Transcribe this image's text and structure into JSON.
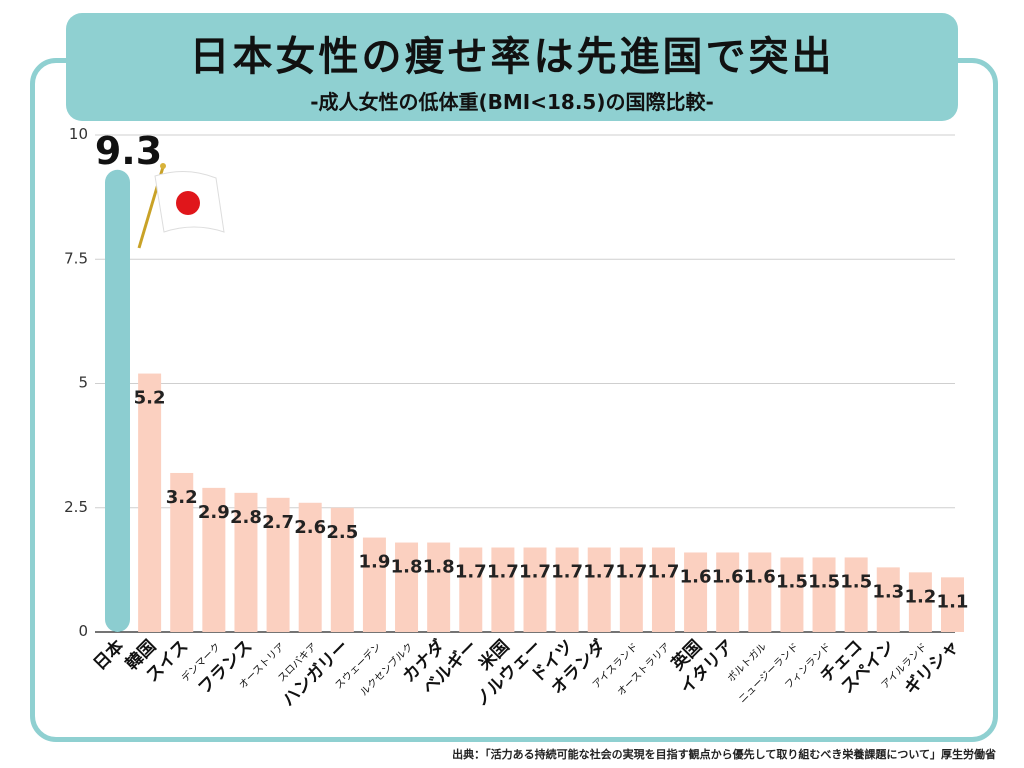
{
  "header": {
    "title": "日本女性の痩せ率は先進国で突出",
    "subtitle": "-成人女性の低体重(BMI<18.5)の国際比較-"
  },
  "source": "出典：「活力ある持続可能な社会の実現を目指す観点から優先して取り組むべき栄養課題について」厚生労働省",
  "colors": {
    "accent": "#8fd0d1",
    "bar_other": "#fbd0c0",
    "bar_japan": "#8ccdd0",
    "flag_red": "#e0161b"
  },
  "chart_data": {
    "type": "bar",
    "categories": [
      "日本",
      "韓国",
      "スイス",
      "デンマーク",
      "フランス",
      "オーストリア",
      "スロバキア",
      "ハンガリー",
      "スウェーデン",
      "ルクセンブルク",
      "カナダ",
      "ベルギー",
      "米国",
      "ノルウェー",
      "ドイツ",
      "オランダ",
      "アイスランド",
      "オーストラリア",
      "英国",
      "イタリア",
      "ポルトガル",
      "ニュージーランド",
      "フィンランド",
      "チェコ",
      "スペイン",
      "アイルランド",
      "ギリシャ"
    ],
    "values": [
      9.3,
      5.2,
      3.2,
      2.9,
      2.8,
      2.7,
      2.6,
      2.5,
      1.9,
      1.8,
      1.8,
      1.7,
      1.7,
      1.7,
      1.7,
      1.7,
      1.7,
      1.7,
      1.6,
      1.6,
      1.6,
      1.5,
      1.5,
      1.5,
      1.3,
      1.2,
      1.1
    ],
    "value_labels": [
      "9.3",
      "5.2",
      "3.2",
      "2.9",
      "2.8",
      "2.7",
      "2.6",
      "2.5",
      "1.9",
      "1.8",
      "1.8",
      "1.7",
      "1.7",
      "1.7",
      "1.7",
      "1.7",
      "1.7",
      "1.7",
      "1.6",
      "1.6",
      "1.6",
      "1.5",
      "1.5",
      "1.5",
      "1.3",
      "1.2",
      "1.1"
    ],
    "highlight_category": "日本",
    "small_label_categories": [
      "デンマーク",
      "オーストリア",
      "スロバキア",
      "スウェーデン",
      "ルクセンブルク",
      "アイスランド",
      "オーストラリア",
      "ポルトガル",
      "ニュージーランド",
      "フィンランド",
      "アイルランド"
    ],
    "yticks": [
      "0",
      "2.5",
      "5",
      "7.5",
      "10"
    ],
    "ytick_values": [
      0,
      2.5,
      5,
      7.5,
      10
    ],
    "ylim": [
      0,
      10
    ],
    "grid": true,
    "legend": "none",
    "xlabel": "",
    "ylabel": ""
  }
}
